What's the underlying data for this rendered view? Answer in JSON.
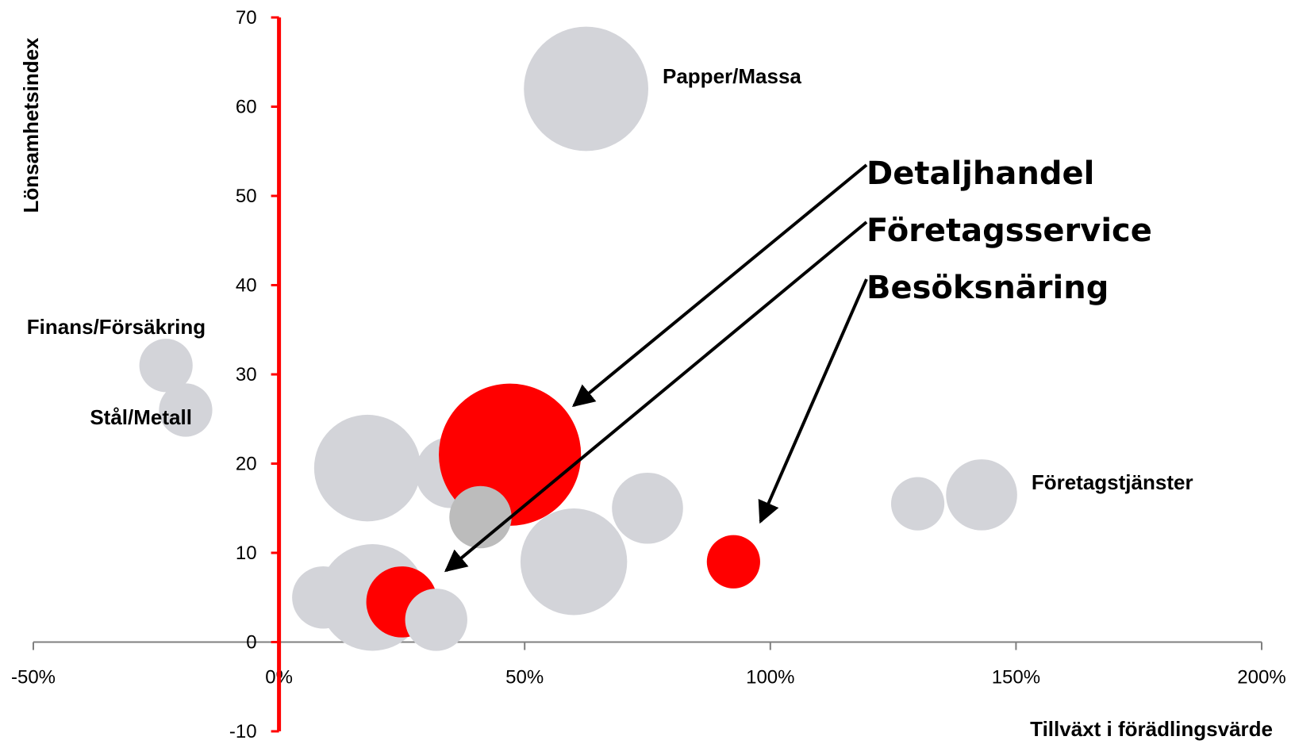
{
  "chart_data": {
    "type": "scatter",
    "variant": "bubble",
    "title": "",
    "xlabel": "Tillväxt i förädlingsvärde",
    "ylabel": "Lönsamhetsindex",
    "xlim": [
      -0.5,
      2.0
    ],
    "ylim": [
      -10,
      70
    ],
    "x_ticks": [
      {
        "value": -0.5,
        "label": "-50%"
      },
      {
        "value": 0.0,
        "label": "0%"
      },
      {
        "value": 0.5,
        "label": "50%"
      },
      {
        "value": 1.0,
        "label": "100%"
      },
      {
        "value": 1.5,
        "label": "150%"
      },
      {
        "value": 2.0,
        "label": "200%"
      }
    ],
    "y_ticks": [
      {
        "value": -10,
        "label": "-10"
      },
      {
        "value": 0,
        "label": "0"
      },
      {
        "value": 10,
        "label": "10"
      },
      {
        "value": 20,
        "label": "20"
      },
      {
        "value": 30,
        "label": "30"
      },
      {
        "value": 40,
        "label": "40"
      },
      {
        "value": 50,
        "label": "50"
      },
      {
        "value": 60,
        "label": "60"
      },
      {
        "value": 70,
        "label": "70"
      }
    ],
    "grid": false,
    "colors": {
      "bubble_default": "#d3d4d9",
      "bubble_highlight": "#ff0000",
      "bubble_dark": "#bcbcbc",
      "y_axis": "#ff0000",
      "x_axis": "#7f7f7f"
    },
    "points": [
      {
        "x": 0.625,
        "y": 62,
        "size": 7,
        "color": "grey",
        "label": "Papper/Massa"
      },
      {
        "x": -0.23,
        "y": 31,
        "size": 3,
        "color": "grey",
        "label": "Finans/Försäkring"
      },
      {
        "x": -0.19,
        "y": 26,
        "size": 3,
        "color": "grey",
        "label": "Stål/Metall"
      },
      {
        "x": 0.18,
        "y": 19.5,
        "size": 6,
        "color": "grey"
      },
      {
        "x": 0.35,
        "y": 19,
        "size": 4,
        "color": "grey"
      },
      {
        "x": 0.47,
        "y": 21,
        "size": 8,
        "color": "red"
      },
      {
        "x": 0.41,
        "y": 14,
        "size": 3.5,
        "color": "darkgrey"
      },
      {
        "x": 0.75,
        "y": 15,
        "size": 4,
        "color": "grey"
      },
      {
        "x": 0.6,
        "y": 9,
        "size": 6,
        "color": "grey"
      },
      {
        "x": 0.09,
        "y": 5,
        "size": 3.5,
        "color": "grey"
      },
      {
        "x": 0.19,
        "y": 5,
        "size": 6,
        "color": "grey"
      },
      {
        "x": 0.25,
        "y": 4.5,
        "size": 4,
        "color": "red"
      },
      {
        "x": 0.32,
        "y": 2.5,
        "size": 3.5,
        "color": "grey"
      },
      {
        "x": 0.925,
        "y": 9,
        "size": 3,
        "color": "red"
      },
      {
        "x": 1.3,
        "y": 15.5,
        "size": 3,
        "color": "grey"
      },
      {
        "x": 1.43,
        "y": 16.5,
        "size": 4,
        "color": "grey",
        "label": "Företagstjänster"
      }
    ],
    "callouts": [
      {
        "label": "Detaljhandel",
        "target": [
          0.6,
          26.5
        ]
      },
      {
        "label": "Företagsservice",
        "target": [
          0.34,
          8
        ]
      },
      {
        "label": "Besöksnäring",
        "target": [
          0.98,
          13.5
        ]
      }
    ]
  }
}
